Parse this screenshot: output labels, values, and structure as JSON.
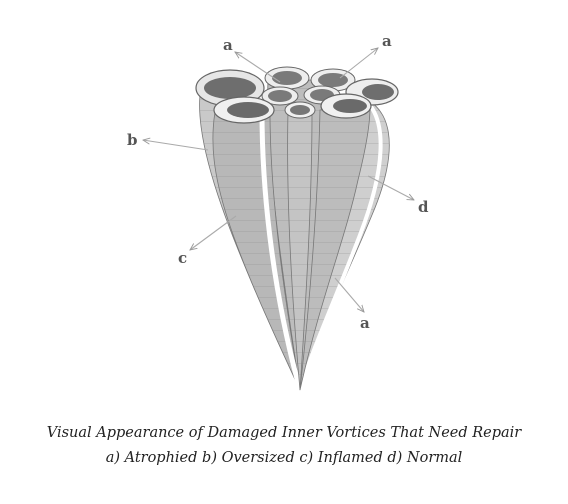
{
  "diagram": {
    "labels": {
      "a": "a",
      "b": "b",
      "c": "c",
      "d": "d"
    }
  },
  "caption": {
    "line1": "Visual Appearance of Damaged Inner Vortices That Need Repair",
    "line2": "a) Atrophied b) Oversized c) Inflamed d) Normal"
  }
}
